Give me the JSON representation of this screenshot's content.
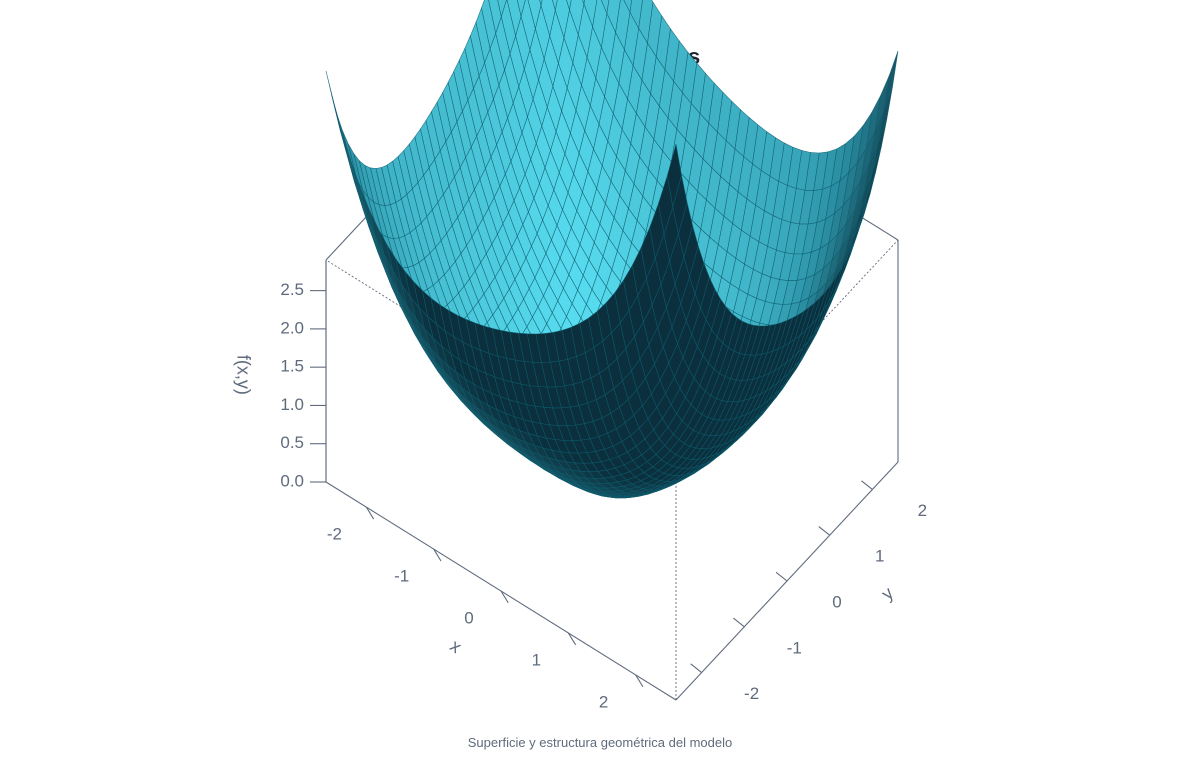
{
  "chart_data": {
    "type": "surface3d",
    "title": "Superficie y Cortes",
    "caption": "Superficie y estructura geométrica del modelo",
    "x_axis": {
      "label": "x",
      "ticks": [
        "-2",
        "-1",
        "0",
        "1",
        "2"
      ],
      "range": [
        -2.6,
        2.6
      ]
    },
    "y_axis": {
      "label": "y",
      "ticks": [
        "-2",
        "-1",
        "0",
        "1",
        "2"
      ],
      "range": [
        -2.6,
        2.6
      ]
    },
    "z_axis": {
      "label": "f(x,y)",
      "ticks": [
        "0.0",
        "0.5",
        "1.0",
        "1.5",
        "2.0",
        "2.5"
      ],
      "range": [
        0,
        2.9
      ]
    },
    "grid_resolution": 40,
    "colors": {
      "dark": "#0b2f3c",
      "mid": "#2b8fa3",
      "light": "#57dbee",
      "mesh": "#0d5c6e",
      "axis": "#5f6b7d"
    }
  }
}
